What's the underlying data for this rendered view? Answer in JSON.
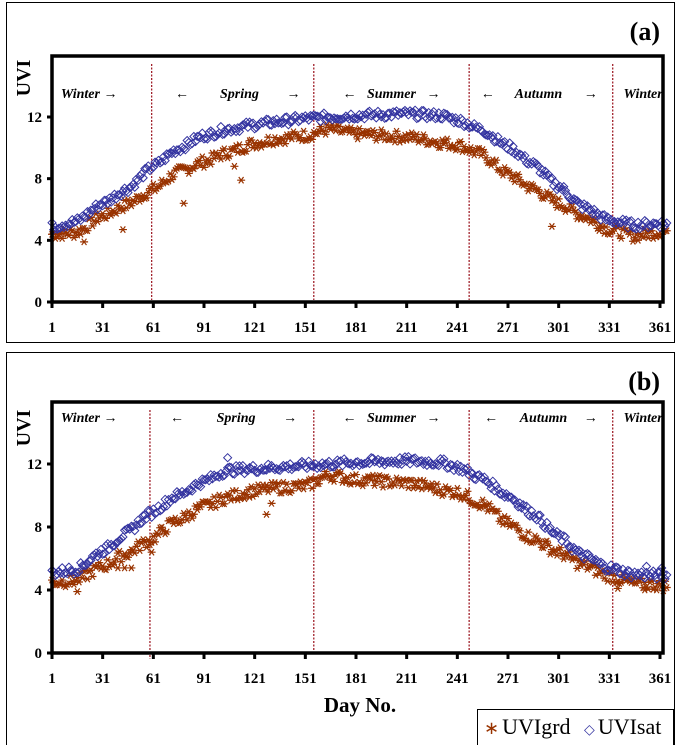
{
  "colors": {
    "grd": "#993300",
    "sat": "#3333a0",
    "season_line": "#a0202a",
    "axis": "#000000"
  },
  "legend": {
    "grd_symbol": "∗",
    "grd_label": "UVIgrd",
    "sat_symbol": "◇",
    "sat_label": "UVIsat"
  },
  "chart_data": [
    {
      "type": "scatter",
      "panel_label": "(a)",
      "ylabel": "UVI",
      "xlabel": "",
      "xlim": [
        1,
        365
      ],
      "ylim": [
        0,
        15
      ],
      "yticks": [
        0,
        4,
        8,
        12
      ],
      "xticks": [
        1,
        31,
        61,
        91,
        121,
        151,
        181,
        211,
        241,
        271,
        301,
        331,
        361
      ],
      "grid": false,
      "season_boundaries": [
        60,
        156,
        248,
        333
      ],
      "season_labels": [
        {
          "text": "Winter →",
          "x": 23
        },
        {
          "text": "←",
          "x": 78
        },
        {
          "text": "Spring",
          "x": 112
        },
        {
          "text": "→",
          "x": 144
        },
        {
          "text": "←   Summer   →",
          "x": 202
        },
        {
          "text": "←",
          "x": 259
        },
        {
          "text": "Autumn",
          "x": 289
        },
        {
          "text": "→",
          "x": 320
        },
        {
          "text": "Winter",
          "x": 351
        }
      ],
      "series": [
        {
          "name": "UVIgrd",
          "marker": "asterisk",
          "profile": {
            "days": [
              1,
              15,
              31,
              45,
              61,
              75,
              91,
              105,
              121,
              135,
              151,
              165,
              181,
              211,
              241,
              255,
              271,
              285,
              301,
              315,
              331,
              345,
              365
            ],
            "values": [
              4.4,
              4.5,
              5.6,
              6.3,
              7.3,
              8.4,
              9.1,
              9.7,
              10.3,
              10.6,
              10.8,
              11.2,
              10.9,
              10.7,
              10.2,
              9.6,
              8.3,
              7.4,
              6.4,
              5.6,
              4.7,
              4.3,
              4.6
            ]
          },
          "outliers": [
            [
              20,
              3.9
            ],
            [
              43,
              4.7
            ],
            [
              79,
              6.4
            ],
            [
              113,
              7.9
            ],
            [
              297,
              4.9
            ],
            [
              109,
              8.8
            ]
          ]
        },
        {
          "name": "UVIsat",
          "marker": "diamond",
          "profile": {
            "days": [
              1,
              15,
              31,
              45,
              61,
              75,
              91,
              105,
              121,
              135,
              151,
              165,
              181,
              211,
              231,
              241,
              255,
              271,
              285,
              301,
              315,
              331,
              345,
              365
            ],
            "values": [
              4.9,
              5.2,
              6.4,
              7.3,
              8.8,
              9.9,
              10.8,
              11.2,
              11.5,
              11.7,
              11.9,
              12.0,
              12.1,
              12.2,
              12.1,
              11.8,
              11.2,
              10.1,
              9.0,
              7.5,
              6.2,
              5.3,
              5.0,
              5.1
            ]
          },
          "outliers": []
        }
      ]
    },
    {
      "type": "scatter",
      "panel_label": "(b)",
      "ylabel": "UVI",
      "xlabel": "Day No.",
      "xlim": [
        1,
        365
      ],
      "ylim": [
        0,
        15
      ],
      "yticks": [
        0,
        4,
        8,
        12
      ],
      "xticks": [
        1,
        31,
        61,
        91,
        121,
        151,
        181,
        211,
        241,
        271,
        301,
        331,
        361
      ],
      "grid": false,
      "season_boundaries": [
        59,
        156,
        248,
        333
      ],
      "season_labels": [
        {
          "text": "Winter →",
          "x": 23
        },
        {
          "text": "←",
          "x": 75
        },
        {
          "text": "Spring",
          "x": 110
        },
        {
          "text": "→",
          "x": 142
        },
        {
          "text": "←   Summer   →",
          "x": 202
        },
        {
          "text": "←",
          "x": 261
        },
        {
          "text": "Autumn",
          "x": 292
        },
        {
          "text": "→",
          "x": 320
        },
        {
          "text": "Winter",
          "x": 351
        }
      ],
      "series": [
        {
          "name": "UVIgrd",
          "marker": "asterisk",
          "profile": {
            "days": [
              1,
              15,
              31,
              45,
              58,
              75,
              91,
              105,
              121,
              135,
              151,
              165,
              181,
              211,
              241,
              255,
              271,
              285,
              301,
              315,
              331,
              345,
              365
            ],
            "values": [
              4.5,
              4.6,
              5.5,
              6.3,
              7.1,
              8.4,
              9.3,
              9.9,
              10.3,
              10.5,
              10.6,
              11.3,
              11.0,
              10.8,
              10.2,
              9.5,
              8.2,
              7.3,
              6.4,
              5.6,
              4.9,
              4.4,
              4.3
            ]
          },
          "outliers": [
            [
              16,
              3.9
            ],
            [
              40,
              5.4
            ],
            [
              44,
              5.4
            ],
            [
              48,
              5.4
            ],
            [
              60,
              6.4
            ],
            [
              128,
              8.8
            ],
            [
              131,
              9.5
            ],
            [
              336,
              4.1
            ],
            [
              352,
              4.0
            ]
          ]
        },
        {
          "name": "UVIsat",
          "marker": "diamond",
          "profile": {
            "days": [
              1,
              15,
              31,
              45,
              58,
              75,
              91,
              105,
              121,
              135,
              151,
              165,
              181,
              211,
              231,
              241,
              255,
              271,
              285,
              301,
              315,
              331,
              345,
              365
            ],
            "values": [
              5.1,
              5.3,
              6.5,
              7.6,
              8.8,
              10.0,
              10.9,
              11.6,
              11.7,
              11.8,
              11.9,
              12.0,
              12.1,
              12.2,
              12.1,
              11.8,
              11.1,
              10.0,
              8.9,
              7.4,
              6.2,
              5.4,
              5.0,
              4.9
            ]
          },
          "outliers": [
            [
              105,
              12.4
            ],
            [
              353,
              5.5
            ],
            [
              362,
              5.4
            ]
          ]
        }
      ]
    }
  ]
}
